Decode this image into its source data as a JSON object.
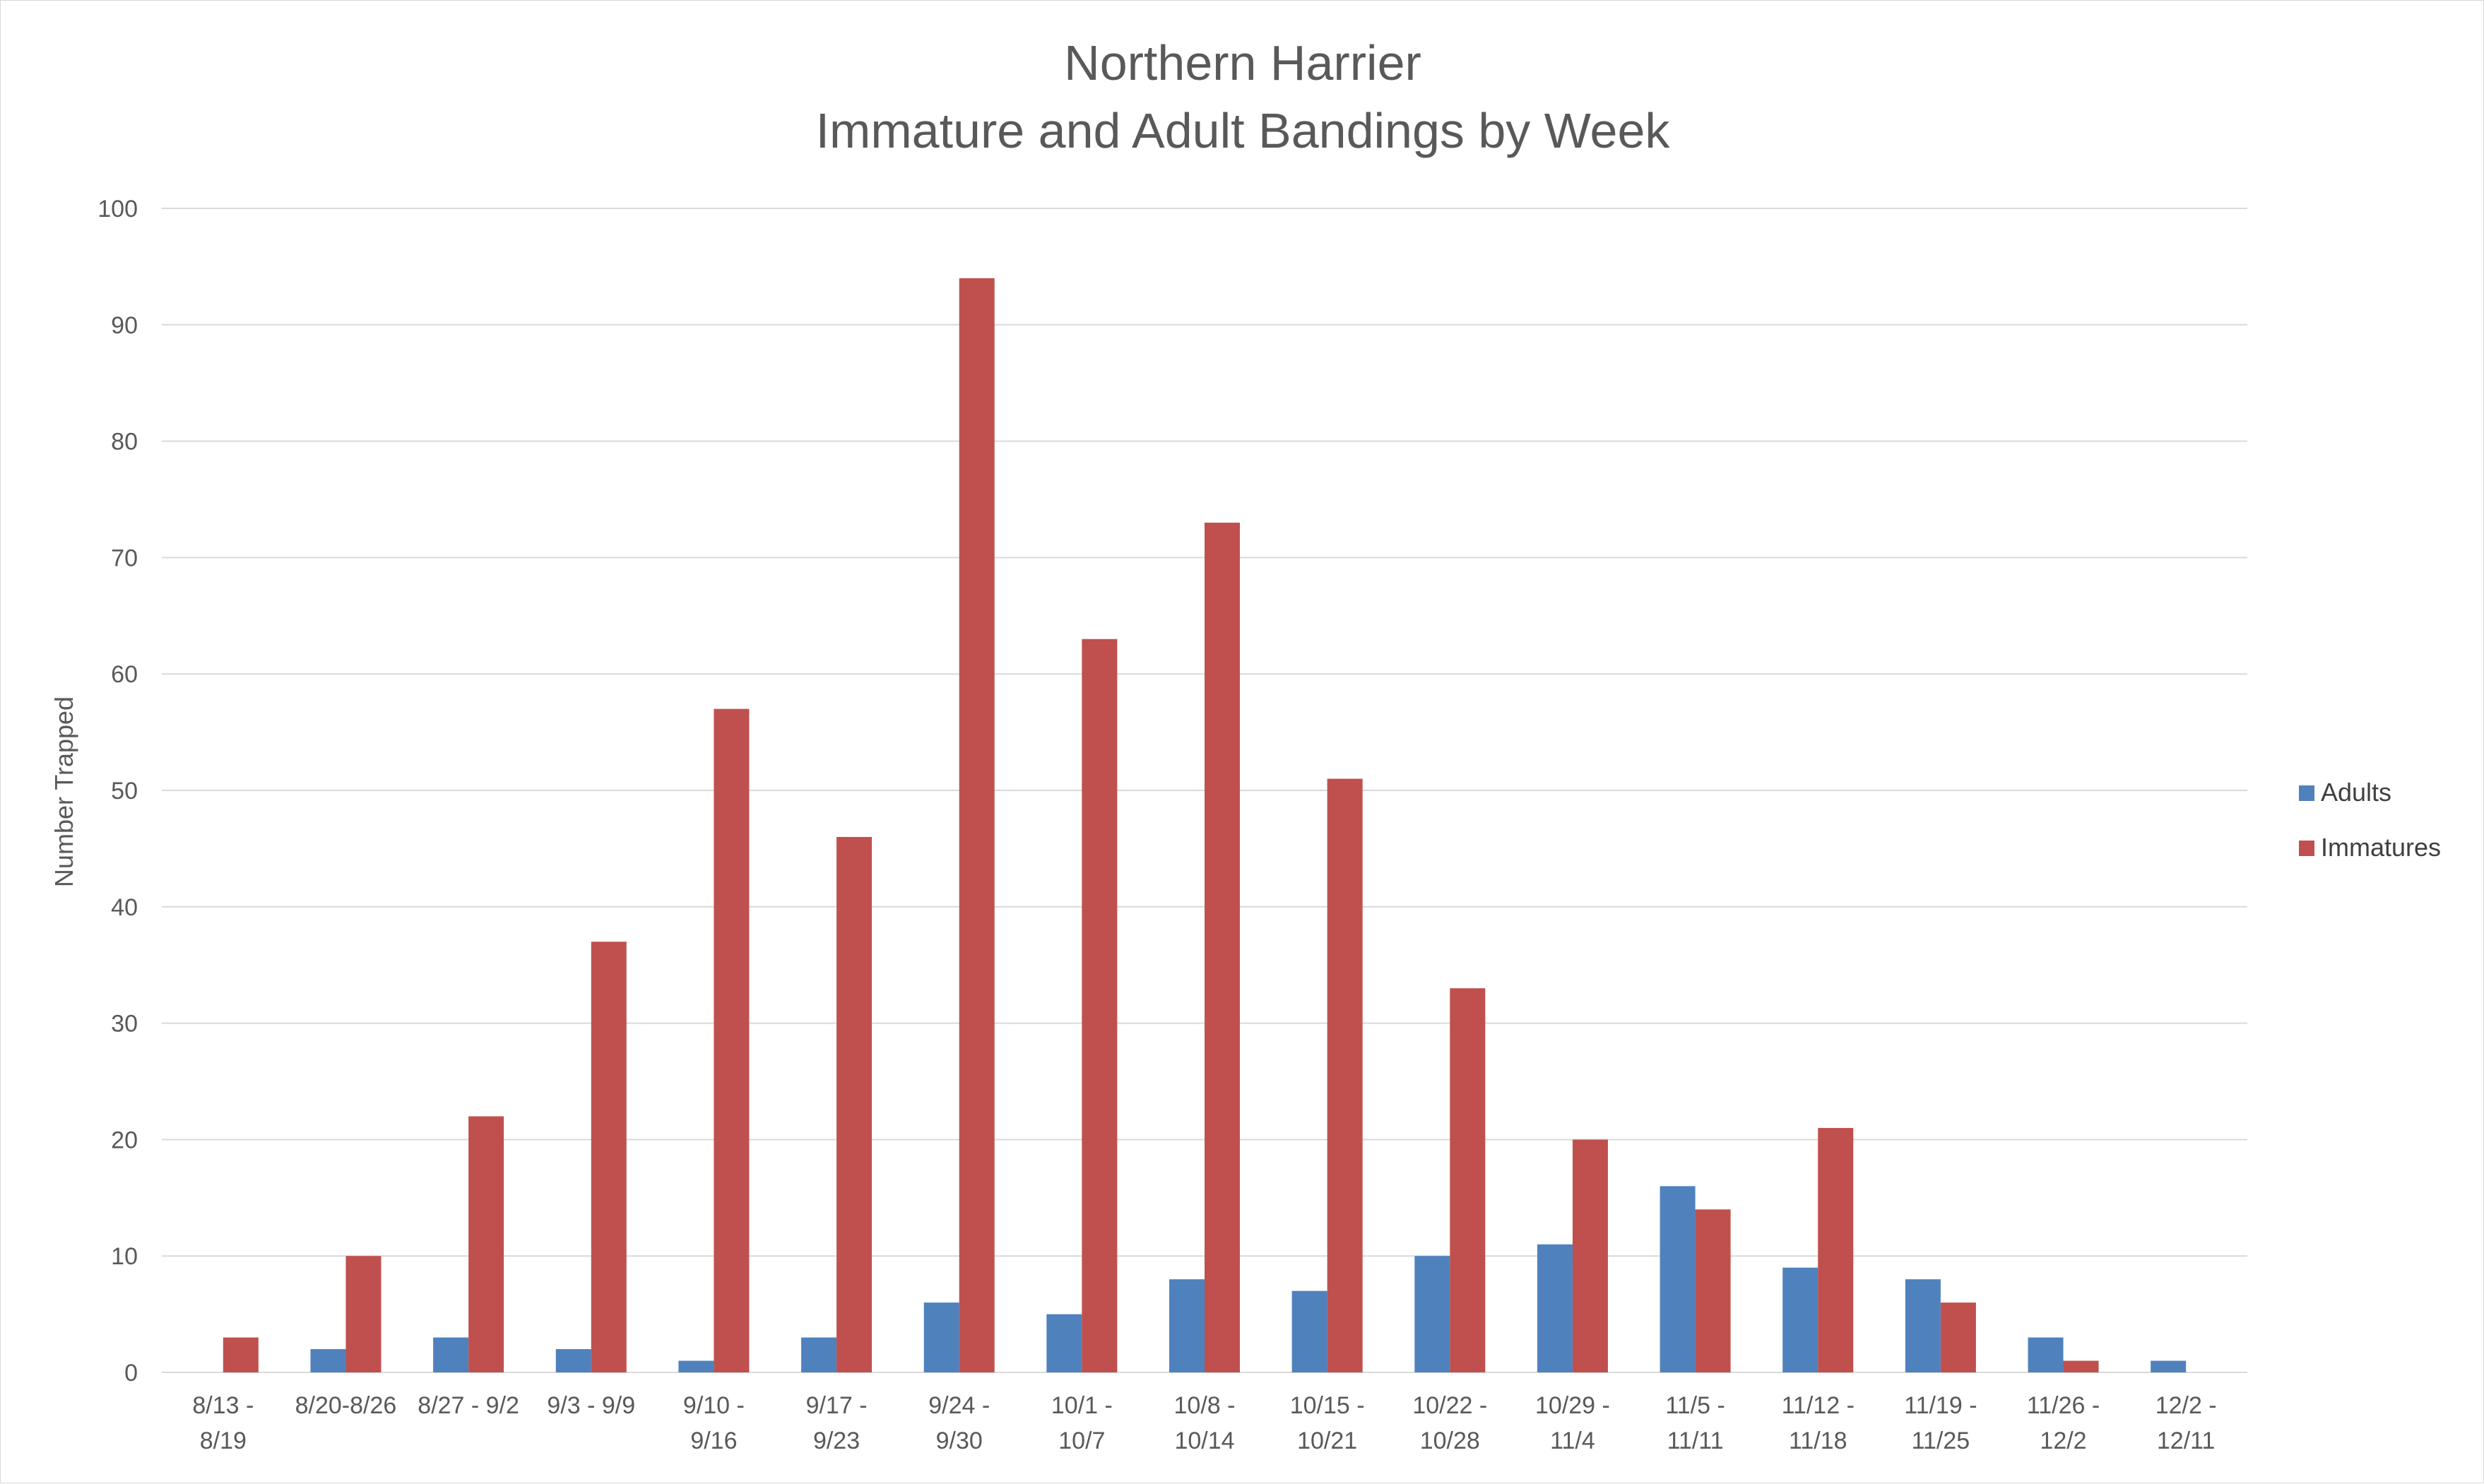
{
  "chart_data": {
    "type": "bar",
    "title": "Northern Harrier",
    "subtitle": "Immature and Adult Bandings by Week",
    "xlabel": "",
    "ylabel": "Number Trapped",
    "ylim": [
      0,
      100
    ],
    "yticks": [
      0,
      10,
      20,
      30,
      40,
      50,
      60,
      70,
      80,
      90,
      100
    ],
    "grid": true,
    "legend_position": "right",
    "categories": [
      [
        "8/13 -",
        "8/19"
      ],
      [
        "8/20-8/26"
      ],
      [
        "8/27 - 9/2"
      ],
      [
        "9/3 - 9/9"
      ],
      [
        "9/10 -",
        "9/16"
      ],
      [
        "9/17 -",
        "9/23"
      ],
      [
        "9/24 -",
        "9/30"
      ],
      [
        "10/1 -",
        "10/7"
      ],
      [
        "10/8 -",
        "10/14"
      ],
      [
        "10/15 -",
        "10/21"
      ],
      [
        "10/22 -",
        "10/28"
      ],
      [
        "10/29 -",
        "11/4"
      ],
      [
        "11/5 -",
        "11/11"
      ],
      [
        "11/12 -",
        "11/18"
      ],
      [
        "11/19 -",
        "11/25"
      ],
      [
        "11/26 -",
        "12/2"
      ],
      [
        "12/2 -",
        "12/11"
      ]
    ],
    "series": [
      {
        "name": "Adults",
        "color": "#4f81bd",
        "values": [
          0,
          2,
          3,
          2,
          1,
          3,
          6,
          5,
          8,
          7,
          10,
          11,
          16,
          9,
          8,
          3,
          1
        ]
      },
      {
        "name": "Immatures",
        "color": "#c0504d",
        "values": [
          3,
          10,
          22,
          37,
          57,
          46,
          94,
          63,
          73,
          51,
          33,
          20,
          14,
          21,
          6,
          1,
          0
        ]
      }
    ]
  }
}
